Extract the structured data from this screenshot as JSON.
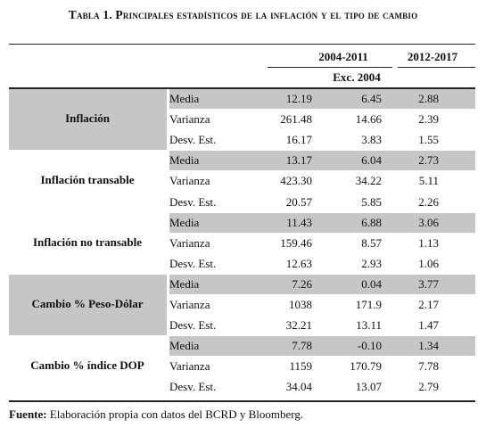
{
  "title": "Tabla 1. Principales estadísticos de la inflación y el tipo de cambio",
  "headers": {
    "period_1": "2004-2011",
    "period_2": "2012-2017",
    "sub": "Exc. 2004"
  },
  "groups": [
    {
      "name": "Inflación",
      "rows": [
        {
          "stat": "Media",
          "v1": "12.19",
          "v2": "6.45",
          "v3": "2.88"
        },
        {
          "stat": "Varianza",
          "v1": "261.48",
          "v2": "14.66",
          "v3": "2.39"
        },
        {
          "stat": "Desv. Est.",
          "v1": "16.17",
          "v2": "3.83",
          "v3": "1.55"
        }
      ]
    },
    {
      "name": "Inflación transable",
      "rows": [
        {
          "stat": "Media",
          "v1": "13.17",
          "v2": "6.04",
          "v3": "2.73"
        },
        {
          "stat": "Varianza",
          "v1": "423.30",
          "v2": "34.22",
          "v3": "5.11"
        },
        {
          "stat": "Desv. Est.",
          "v1": "20.57",
          "v2": "5.85",
          "v3": "2.26"
        }
      ]
    },
    {
      "name": "Inflación no transable",
      "rows": [
        {
          "stat": "Media",
          "v1": "11.43",
          "v2": "6.88",
          "v3": "3.06"
        },
        {
          "stat": "Varianza",
          "v1": "159.46",
          "v2": "8.57",
          "v3": "1.13"
        },
        {
          "stat": "Desv. Est.",
          "v1": "12.63",
          "v2": "2.93",
          "v3": "1.06"
        }
      ]
    },
    {
      "name": "Cambio % Peso-Dólar",
      "rows": [
        {
          "stat": "Media",
          "v1": "7.26",
          "v2": "0.04",
          "v3": "3.77"
        },
        {
          "stat": "Varianza",
          "v1": "1038",
          "v2": "171.9",
          "v3": "2.17"
        },
        {
          "stat": "Desv. Est.",
          "v1": "32.21",
          "v2": "13.11",
          "v3": "1.47"
        }
      ]
    },
    {
      "name": "Cambio % índice DOP",
      "rows": [
        {
          "stat": "Media",
          "v1": "7.78",
          "v2": "-0.10",
          "v3": "1.34"
        },
        {
          "stat": "Varianza",
          "v1": "1159",
          "v2": "170.79",
          "v3": "7.78"
        },
        {
          "stat": "Desv. Est.",
          "v1": "34.04",
          "v2": "13.07",
          "v3": "2.79"
        }
      ]
    }
  ],
  "source": {
    "label": "Fuente:",
    "text": " Elaboración propia con datos del BCRD y Bloomberg."
  }
}
